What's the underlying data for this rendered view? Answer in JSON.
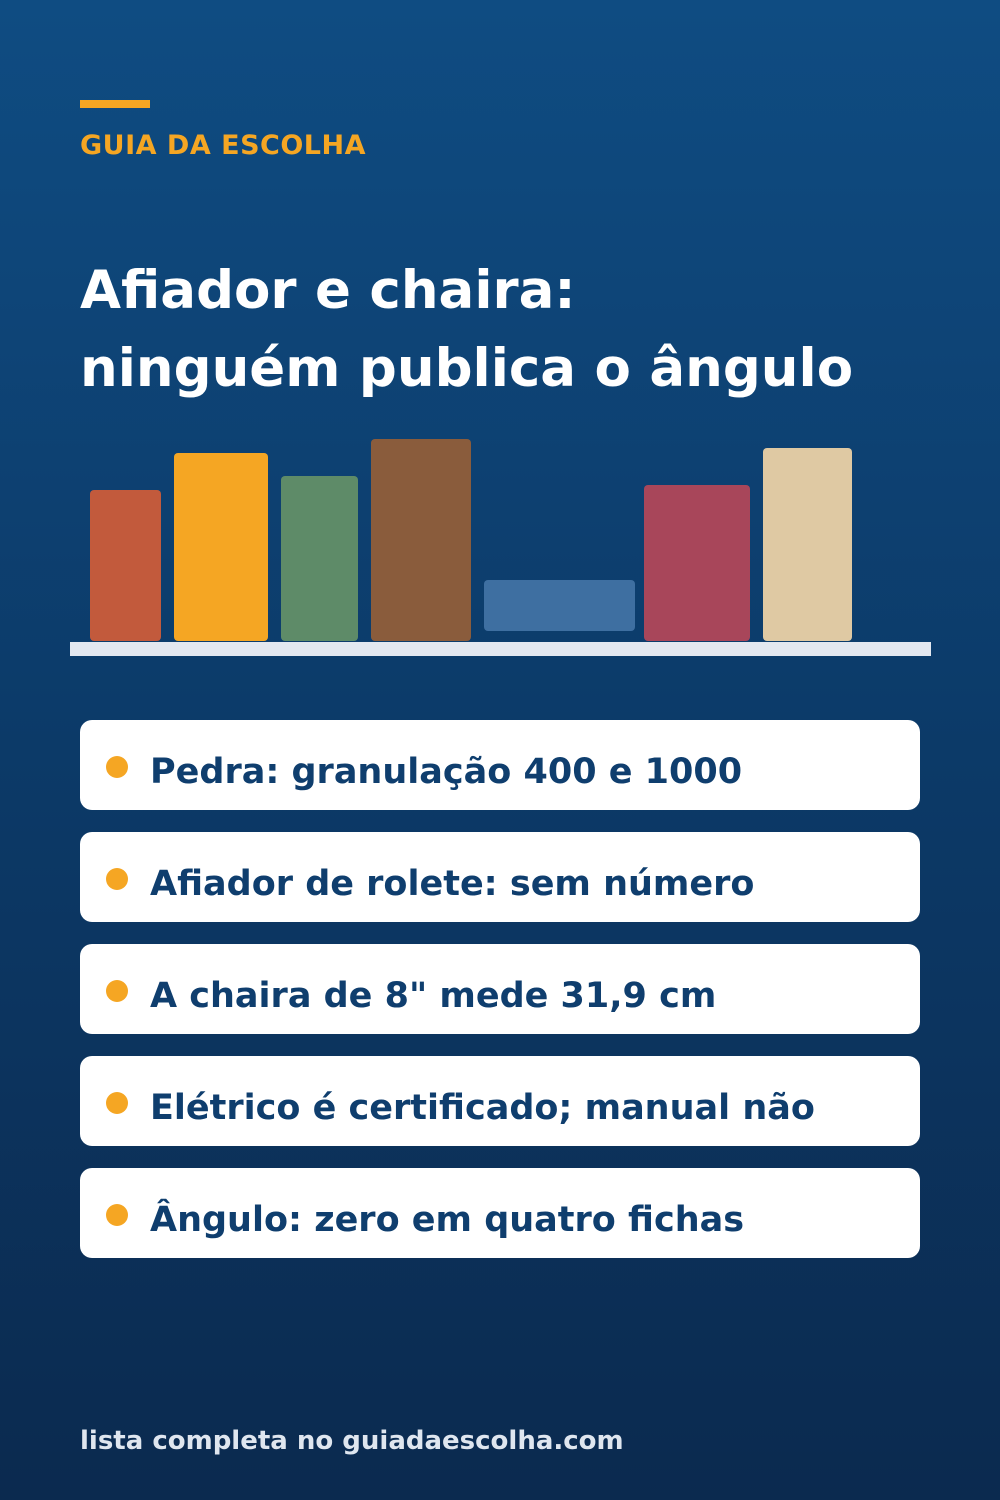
{
  "header": {
    "kicker": "GUIA DA ESCOLHA",
    "title_line_1": "Afiador e chaira:",
    "title_line_2": "ninguém publica o ângulo"
  },
  "illustration": {
    "books": [
      {
        "name": "book-1",
        "color": "#c25a3c"
      },
      {
        "name": "book-2",
        "color": "#f5a623"
      },
      {
        "name": "book-3",
        "color": "#5e8b68"
      },
      {
        "name": "book-4",
        "color": "#8a5c3c"
      },
      {
        "name": "book-5-lying",
        "color": "#3e6fa1"
      },
      {
        "name": "book-6",
        "color": "#a8465a"
      },
      {
        "name": "book-7",
        "color": "#dfc9a3"
      }
    ],
    "shelf_color": "#e3e8f0"
  },
  "items": [
    {
      "text": "Pedra: granulação 400 e 1000"
    },
    {
      "text": "Afiador de rolete: sem número"
    },
    {
      "text": "A chaira de 8\" mede 31,9 cm"
    },
    {
      "text": "Elétrico é certificado; manual não"
    },
    {
      "text": "Ângulo: zero em quatro fichas"
    }
  ],
  "footer": {
    "text": "lista completa no guiadaescolha.com"
  },
  "colors": {
    "accent": "#f5a623",
    "background_top": "#0f4c82",
    "background_bottom": "#0b2a4f",
    "card_text": "#0f3e6e"
  }
}
